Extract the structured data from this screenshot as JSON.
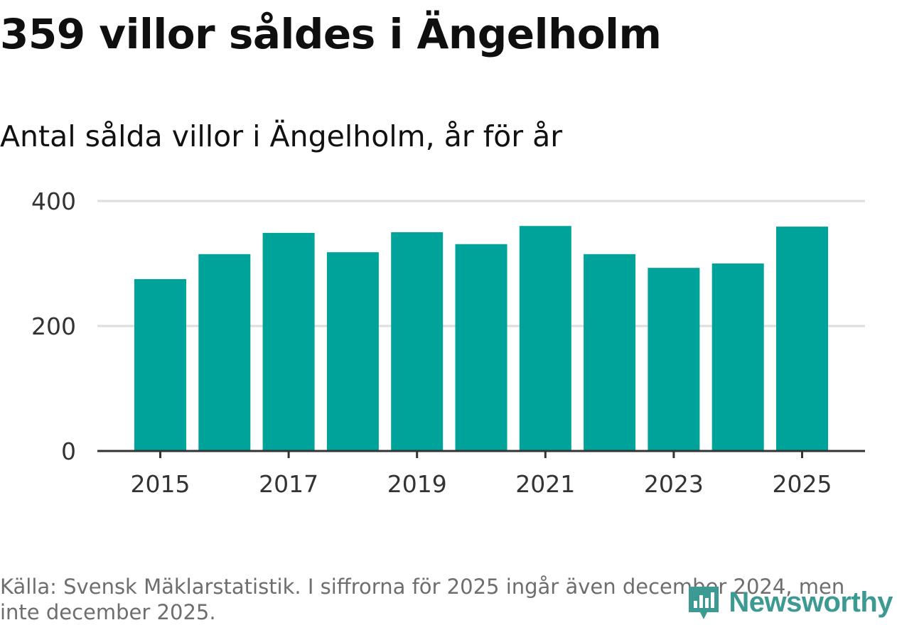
{
  "title": "359 villor såldes i Ängelholm",
  "subtitle": "Antal sålda villor i Ängelholm, år för år",
  "source": "Källa: Svensk Mäklarstatistik. I siffrorna för 2025 ingår även december 2024, men inte december 2025.",
  "brand": {
    "name": "Newsworthy",
    "color": "#3d9a92"
  },
  "colors": {
    "bar": "#00a39a",
    "grid": "#dddddd",
    "axis": "#333333",
    "tick_text": "#333333"
  },
  "chart_data": {
    "type": "bar",
    "title": "Antal sålda villor i Ängelholm, år för år",
    "xlabel": "",
    "ylabel": "",
    "categories": [
      "2015",
      "2016",
      "2017",
      "2018",
      "2019",
      "2020",
      "2021",
      "2022",
      "2023",
      "2024",
      "2025"
    ],
    "values": [
      275,
      315,
      349,
      318,
      350,
      331,
      360,
      315,
      293,
      300,
      359
    ],
    "ylim": [
      0,
      400
    ],
    "y_ticks": [
      0,
      200,
      400
    ],
    "x_tick_labels": [
      "2015",
      "2017",
      "2019",
      "2021",
      "2023",
      "2025"
    ],
    "grid": true
  }
}
